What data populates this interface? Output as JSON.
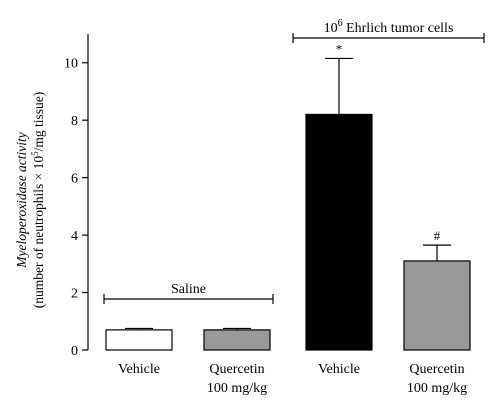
{
  "chart_data": {
    "type": "bar",
    "categories": [
      "Vehicle",
      "Quercetin 100 mg/kg",
      "Vehicle",
      "Quercetin 100 mg/kg"
    ],
    "category_lines": [
      [
        "Vehicle"
      ],
      [
        "Quercetin",
        "100 mg/kg"
      ],
      [
        "Vehicle"
      ],
      [
        "Quercetin",
        "100 mg/kg"
      ]
    ],
    "values": [
      0.7,
      0.7,
      8.2,
      3.1
    ],
    "errors": [
      0.05,
      0.05,
      1.95,
      0.55
    ],
    "bar_colors": [
      "#ffffff",
      "#999999",
      "#000000",
      "#999999"
    ],
    "significance": [
      "",
      "",
      "*",
      "#"
    ],
    "ylabel_line1": "Myeloperoxidase activity",
    "ylabel_line2": "(number of neutrophils × 10",
    "ylabel_sup": "5",
    "ylabel_line2_end": "/mg tissue)",
    "ylim": [
      0,
      11
    ],
    "yticks": [
      0,
      2,
      4,
      6,
      8,
      10
    ],
    "groups": [
      {
        "label": "Saline",
        "bars": [
          0,
          1
        ]
      },
      {
        "label_sup": "6",
        "label_prefix": "10",
        "label": " Ehrlich tumor cells",
        "bars": [
          2,
          3
        ]
      }
    ]
  }
}
